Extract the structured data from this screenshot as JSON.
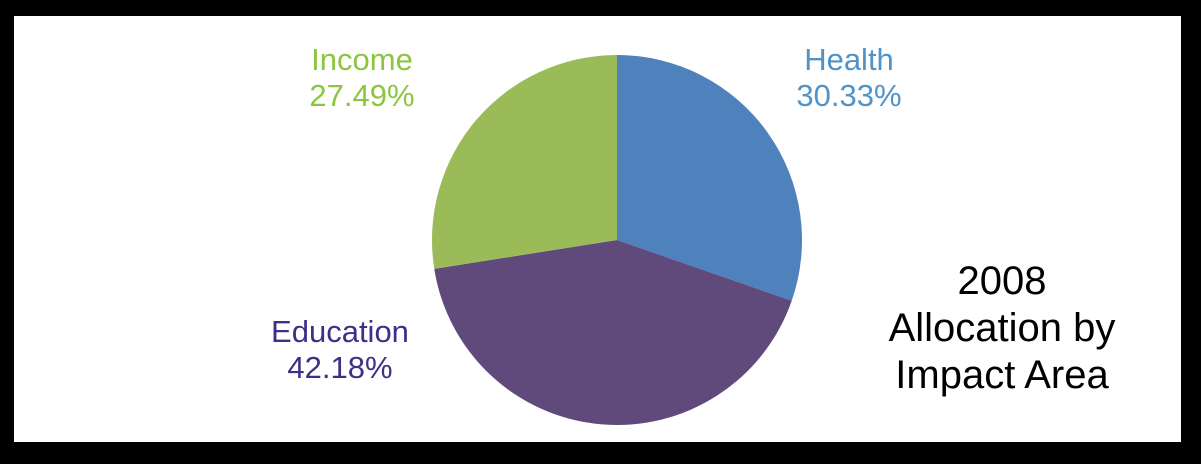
{
  "chart_data": {
    "type": "pie",
    "title_lines": [
      "2008",
      "Allocation by",
      "Impact Area"
    ],
    "slices": [
      {
        "name": "Health",
        "value": 30.33,
        "value_label": "30.33%",
        "color": "#4f81bd",
        "label_color": "#4f93c9"
      },
      {
        "name": "Education",
        "value": 42.18,
        "value_label": "42.18%",
        "color": "#604a7b",
        "label_color": "#3d3088"
      },
      {
        "name": "Income",
        "value": 27.49,
        "value_label": "27.49%",
        "color": "#9bbb59",
        "label_color": "#8cc63f"
      }
    ],
    "start_angle_deg": 0,
    "direction": "clockwise"
  },
  "background_color": "#ffffff",
  "border_color": "#000000"
}
